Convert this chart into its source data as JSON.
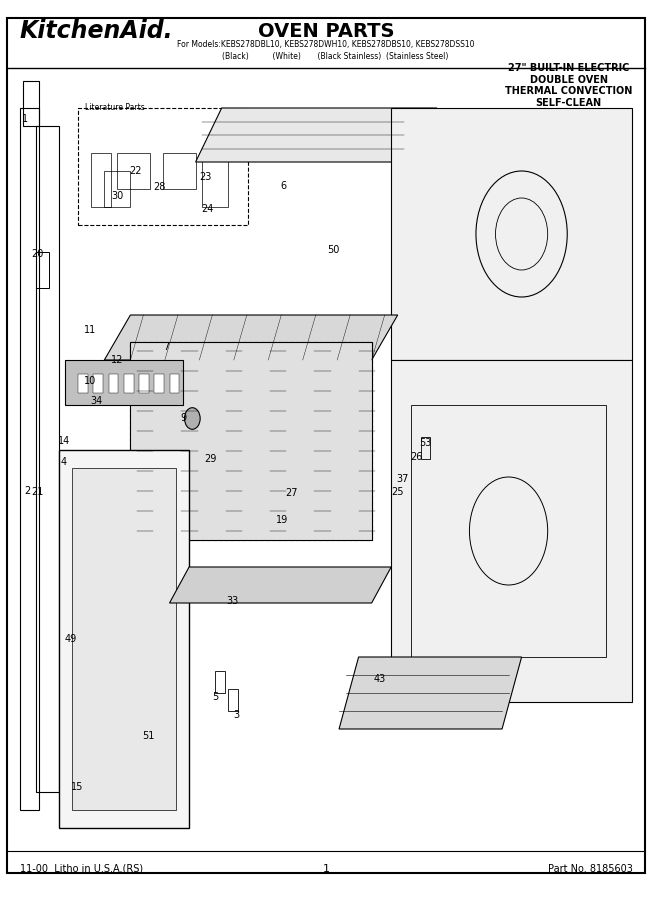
{
  "title": "OVEN PARTS",
  "brand": "KitchenAid.",
  "model_line": "For Models:KEBS278DBL10, KEBS278DWH10, KEBS278DBS10, KEBS278DSS10",
  "model_colors": "        (Black)          (White)       (Black Stainless)  (Stainless Steel)",
  "spec_line1": "27\" BUILT-IN ELECTRIC",
  "spec_line2": "DOUBLE OVEN",
  "spec_line3": "THERMAL CONVECTION",
  "spec_line4": "SELF-CLEAN",
  "footer_left": "11-00  Litho in U.S.A.(RS)",
  "footer_center": "1",
  "footer_right": "Part No. 8185603",
  "bg_color": "#ffffff",
  "border_color": "#000000"
}
